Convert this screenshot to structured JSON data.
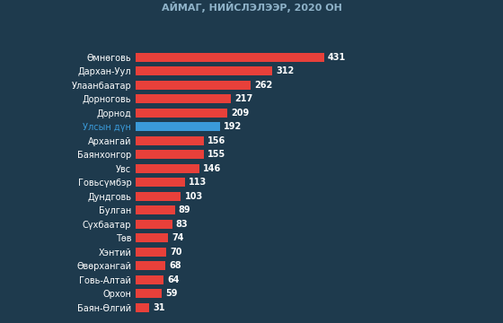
{
  "chart_data": {
    "type": "bar",
    "orientation": "horizontal",
    "title": "АЙМАГ, НИЙСЛЭЛЭЭР, 2020 ОН",
    "categories": [
      "Өмнөговь",
      "Дархан-Уул",
      "Улаанбаатар",
      "Дорноговь",
      "Дорнод",
      "Улсын дүн",
      "Архангай",
      "Баянхонгор",
      "Увс",
      "Говьсүмбэр",
      "Дундговь",
      "Булган",
      "Сүхбаатар",
      "Төв",
      "Хэнтий",
      "Өвөрхангай",
      "Говь-Алтай",
      "Орхон",
      "Баян-Өлгий"
    ],
    "values": [
      431,
      312,
      262,
      217,
      209,
      192,
      156,
      155,
      146,
      113,
      103,
      89,
      83,
      74,
      70,
      68,
      64,
      59,
      31
    ],
    "colors": [
      "#e8403a",
      "#e8403a",
      "#e8403a",
      "#e8403a",
      "#e8403a",
      "#3a9ad9",
      "#e8403a",
      "#e8403a",
      "#e8403a",
      "#e8403a",
      "#e8403a",
      "#e8403a",
      "#e8403a",
      "#e8403a",
      "#e8403a",
      "#e8403a",
      "#e8403a",
      "#e8403a",
      "#e8403a"
    ],
    "xlim": [
      0,
      840
    ],
    "xticks": [],
    "data_labels": true,
    "tick_labels": "y",
    "grid": false
  }
}
